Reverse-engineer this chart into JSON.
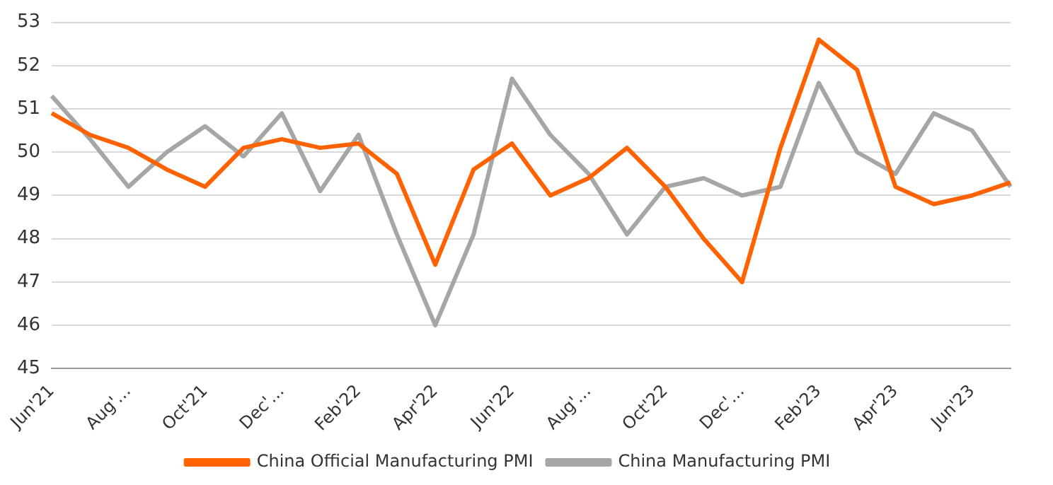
{
  "chart_data": {
    "type": "line",
    "categories": [
      "Jun'21",
      null,
      "Aug'…",
      null,
      "Oct'21",
      null,
      "Dec'…",
      null,
      "Feb'22",
      null,
      "Apr'22",
      null,
      "Jun'22",
      null,
      "Aug'…",
      null,
      "Oct'22",
      null,
      "Dec'…",
      null,
      "Feb'23",
      null,
      "Apr'23",
      null,
      "Jun'23",
      null
    ],
    "series": [
      {
        "name": "China Official Manufacturing PMI",
        "color": "#ff6200",
        "values": [
          50.9,
          50.4,
          50.1,
          49.6,
          49.2,
          50.1,
          50.3,
          50.1,
          50.2,
          49.5,
          47.4,
          49.6,
          50.2,
          49.0,
          49.4,
          50.1,
          49.2,
          48.0,
          47.0,
          50.1,
          52.6,
          51.9,
          49.2,
          48.8,
          49.0,
          49.3
        ]
      },
      {
        "name": "China Manufacturing PMI",
        "color": "#a6a6a6",
        "values": [
          51.3,
          50.3,
          49.2,
          50.0,
          50.6,
          49.9,
          50.9,
          49.1,
          50.4,
          48.1,
          46.0,
          48.1,
          51.7,
          50.4,
          49.5,
          48.1,
          49.2,
          49.4,
          49.0,
          49.2,
          51.6,
          50.0,
          49.5,
          50.9,
          50.5,
          49.2
        ]
      }
    ],
    "ylim": [
      45,
      53
    ],
    "yticks": [
      45,
      46,
      47,
      48,
      49,
      50,
      51,
      52,
      53
    ],
    "grid": "y",
    "legend": "bottom",
    "marker": "none",
    "line_style": "solid"
  }
}
